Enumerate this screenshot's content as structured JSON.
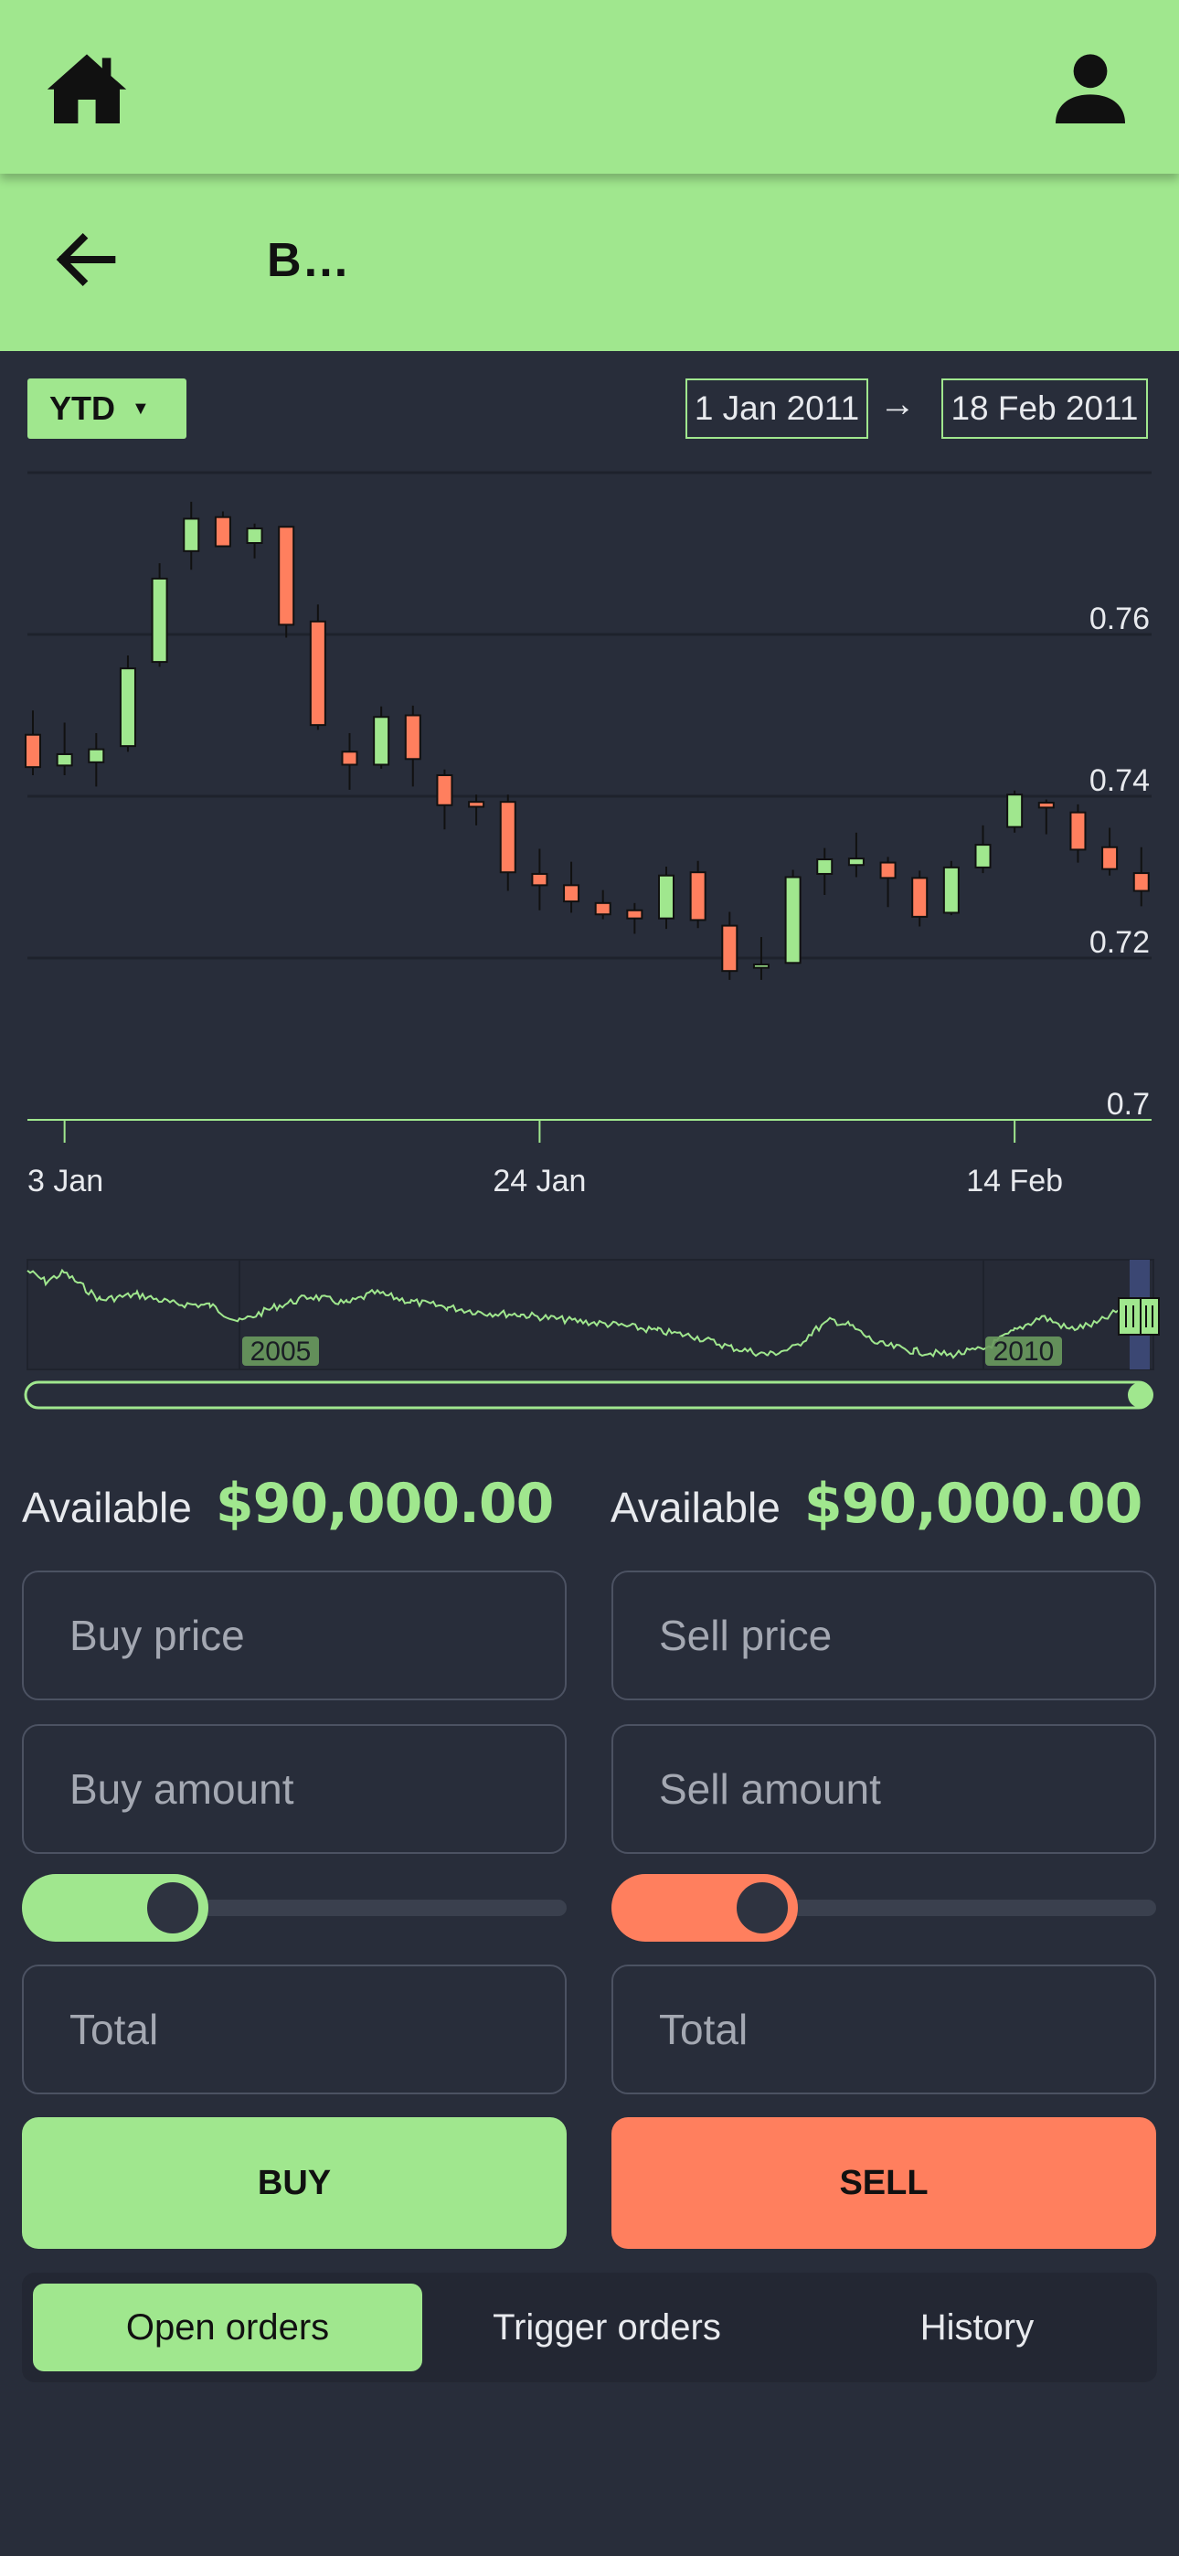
{
  "header": {
    "home_icon": "home-icon",
    "profile_icon": "user-icon"
  },
  "subheader": {
    "back_icon": "arrow-left-icon",
    "title": "B…"
  },
  "range": {
    "label": "YTD",
    "from": "1 Jan 2011",
    "arrow": "→",
    "to": "18 Feb 2011"
  },
  "colors": {
    "bull": "#a0e78e",
    "bear": "#ff7f5e",
    "bg": "#282d3a",
    "accent": "#a0e78e"
  },
  "chart_data": {
    "type": "candlestick",
    "title": "",
    "xlabel": "",
    "ylabel": "",
    "ylim": [
      0.7,
      0.78
    ],
    "y_ticks": [
      "0.7",
      "0.72",
      "0.74",
      "0.76"
    ],
    "x_ticks": [
      {
        "label": "3 Jan",
        "index": 1
      },
      {
        "label": "24 Jan",
        "index": 16
      },
      {
        "label": "14 Feb",
        "index": 31
      }
    ],
    "candles": [
      {
        "o": 0.7476,
        "h": 0.7506,
        "l": 0.7426,
        "c": 0.7436
      },
      {
        "o": 0.7438,
        "h": 0.7491,
        "l": 0.7426,
        "c": 0.7452
      },
      {
        "o": 0.7442,
        "h": 0.7478,
        "l": 0.7412,
        "c": 0.7458
      },
      {
        "o": 0.7462,
        "h": 0.7574,
        "l": 0.7455,
        "c": 0.7558
      },
      {
        "o": 0.7566,
        "h": 0.7688,
        "l": 0.756,
        "c": 0.7669
      },
      {
        "o": 0.7703,
        "h": 0.7764,
        "l": 0.768,
        "c": 0.7743
      },
      {
        "o": 0.7745,
        "h": 0.7752,
        "l": 0.7709,
        "c": 0.7709
      },
      {
        "o": 0.7713,
        "h": 0.7737,
        "l": 0.7694,
        "c": 0.7731
      },
      {
        "o": 0.7733,
        "h": 0.7733,
        "l": 0.7596,
        "c": 0.7612
      },
      {
        "o": 0.7616,
        "h": 0.7637,
        "l": 0.7482,
        "c": 0.7488
      },
      {
        "o": 0.7455,
        "h": 0.7478,
        "l": 0.7408,
        "c": 0.7439
      },
      {
        "o": 0.7439,
        "h": 0.7511,
        "l": 0.7434,
        "c": 0.7498
      },
      {
        "o": 0.75,
        "h": 0.7512,
        "l": 0.7412,
        "c": 0.7446
      },
      {
        "o": 0.7426,
        "h": 0.7433,
        "l": 0.7359,
        "c": 0.7389
      },
      {
        "o": 0.7393,
        "h": 0.7402,
        "l": 0.7364,
        "c": 0.7387
      },
      {
        "o": 0.7393,
        "h": 0.7402,
        "l": 0.7283,
        "c": 0.7306
      },
      {
        "o": 0.7304,
        "h": 0.7335,
        "l": 0.7259,
        "c": 0.729
      },
      {
        "o": 0.729,
        "h": 0.7319,
        "l": 0.7256,
        "c": 0.727
      },
      {
        "o": 0.7268,
        "h": 0.7284,
        "l": 0.7248,
        "c": 0.7254
      },
      {
        "o": 0.7259,
        "h": 0.7268,
        "l": 0.723,
        "c": 0.7249
      },
      {
        "o": 0.7249,
        "h": 0.7313,
        "l": 0.7236,
        "c": 0.7302
      },
      {
        "o": 0.7306,
        "h": 0.732,
        "l": 0.7237,
        "c": 0.7247
      },
      {
        "o": 0.724,
        "h": 0.7257,
        "l": 0.7173,
        "c": 0.7184
      },
      {
        "o": 0.7188,
        "h": 0.7226,
        "l": 0.7173,
        "c": 0.7192
      },
      {
        "o": 0.7194,
        "h": 0.7309,
        "l": 0.7193,
        "c": 0.73
      },
      {
        "o": 0.7304,
        "h": 0.7336,
        "l": 0.7278,
        "c": 0.7322
      },
      {
        "o": 0.7315,
        "h": 0.7355,
        "l": 0.73,
        "c": 0.7323
      },
      {
        "o": 0.7318,
        "h": 0.7325,
        "l": 0.7263,
        "c": 0.7299
      },
      {
        "o": 0.7299,
        "h": 0.7308,
        "l": 0.7239,
        "c": 0.7251
      },
      {
        "o": 0.7256,
        "h": 0.732,
        "l": 0.7253,
        "c": 0.7312
      },
      {
        "o": 0.7312,
        "h": 0.7364,
        "l": 0.7305,
        "c": 0.734
      },
      {
        "o": 0.7362,
        "h": 0.7407,
        "l": 0.7355,
        "c": 0.7402
      },
      {
        "o": 0.7392,
        "h": 0.7396,
        "l": 0.7353,
        "c": 0.7386
      },
      {
        "o": 0.738,
        "h": 0.739,
        "l": 0.7318,
        "c": 0.7334
      },
      {
        "o": 0.7337,
        "h": 0.7361,
        "l": 0.7302,
        "c": 0.731
      },
      {
        "o": 0.7305,
        "h": 0.7337,
        "l": 0.7264,
        "c": 0.7283
      }
    ],
    "navigator": {
      "labels": [
        "2005",
        "2010"
      ]
    }
  },
  "trade": {
    "buy": {
      "available_label": "Available",
      "available_value": "$90,000.00",
      "price_placeholder": "Buy price",
      "amount_placeholder": "Buy amount",
      "slider_fraction": 0.2,
      "total_placeholder": "Total",
      "button": "BUY"
    },
    "sell": {
      "available_label": "Available",
      "available_value": "$90,000.00",
      "price_placeholder": "Sell price",
      "amount_placeholder": "Sell amount",
      "slider_fraction": 0.2,
      "total_placeholder": "Total",
      "button": "SELL"
    }
  },
  "tabs": [
    {
      "label": "Open orders",
      "active": true
    },
    {
      "label": "Trigger orders",
      "active": false
    },
    {
      "label": "History",
      "active": false
    }
  ]
}
